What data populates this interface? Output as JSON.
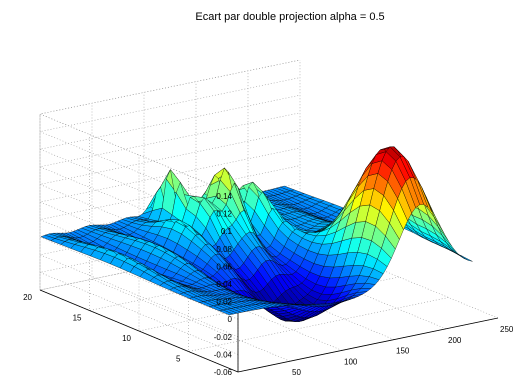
{
  "chart_data": {
    "type": "surface",
    "title": "Ecart par double projection alpha = 0.5",
    "xlabel": "",
    "ylabel": "",
    "zlabel": "",
    "xlim": [
      0,
      250
    ],
    "ylim": [
      0,
      20
    ],
    "zlim": [
      -0.06,
      0.14
    ],
    "grid": true,
    "colormap": "jet",
    "x_ticks": [
      "0",
      "50",
      "100",
      "150",
      "200",
      "250"
    ],
    "y_ticks": [
      "0",
      "5",
      "10",
      "15",
      "20"
    ],
    "z_ticks": [
      "-0.06",
      "-0.04",
      "-0.02",
      "0",
      "0.02",
      "0.04",
      "0.06",
      "0.08",
      "0.1",
      "0.12",
      "0.14"
    ],
    "surface": {
      "x_range": [
        1,
        235
      ],
      "y_range": [
        1,
        20
      ],
      "features": [
        {
          "kind": "peak",
          "x": 185,
          "y": 4,
          "z": 0.135
        },
        {
          "kind": "ridge",
          "x": 130,
          "y": 15,
          "z": 0.07
        },
        {
          "kind": "spike",
          "x": 105,
          "y": 18,
          "z": 0.06
        },
        {
          "kind": "trough",
          "x": 110,
          "y": 6,
          "z": -0.055
        }
      ]
    }
  }
}
